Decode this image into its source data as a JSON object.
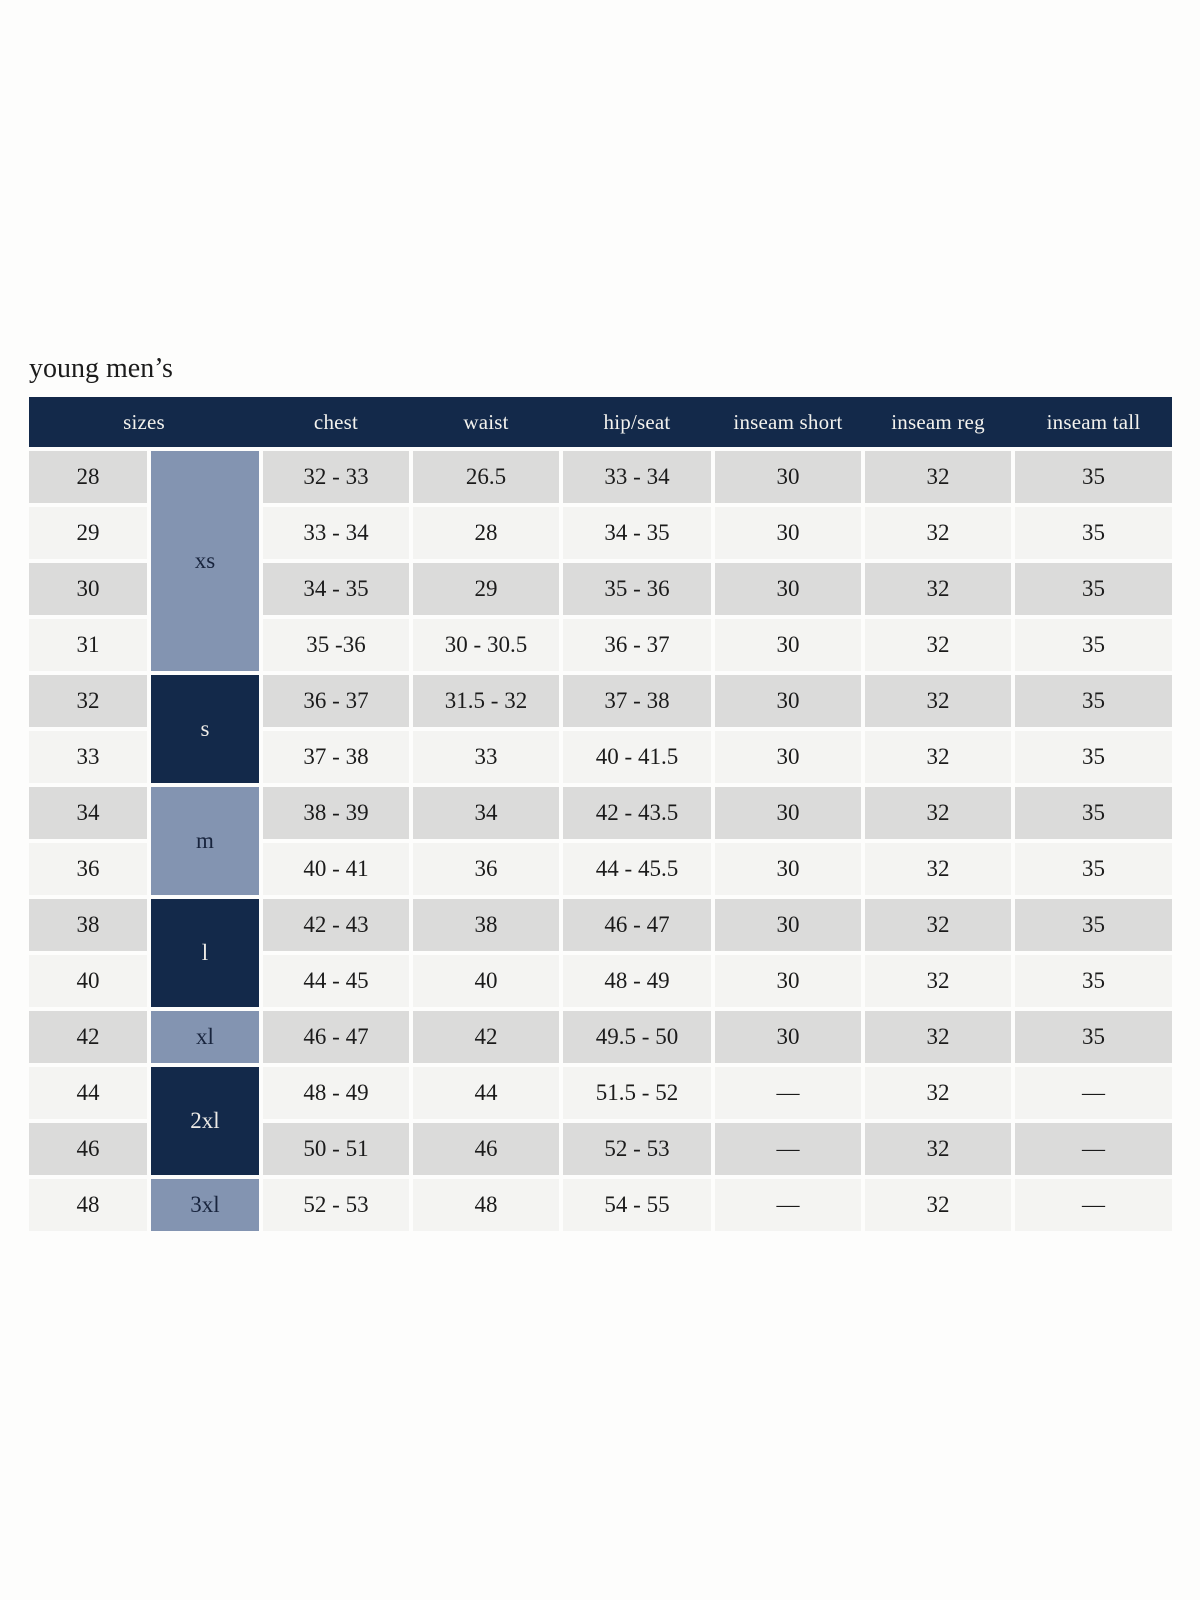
{
  "page": {
    "title": "young men’s"
  },
  "colors": {
    "header_bg": "#13294a",
    "header_fg": "#f3f2ee",
    "row_odd": "#dbdbda",
    "row_even": "#f4f4f2",
    "group_light": "#8394b1",
    "group_dark": "#13294a",
    "page_bg": "#fdfdfc",
    "text": "#1b1b1b"
  },
  "table": {
    "columns": [
      "sizes",
      "chest",
      "waist",
      "hip/seat",
      "inseam short",
      "inseam reg",
      "inseam tall"
    ],
    "size_groups": [
      {
        "label": "xs",
        "rows": 4,
        "variant": "light"
      },
      {
        "label": "s",
        "rows": 2,
        "variant": "dark"
      },
      {
        "label": "m",
        "rows": 2,
        "variant": "light"
      },
      {
        "label": "l",
        "rows": 2,
        "variant": "dark"
      },
      {
        "label": "xl",
        "rows": 1,
        "variant": "light"
      },
      {
        "label": "2xl",
        "rows": 2,
        "variant": "dark"
      },
      {
        "label": "3xl",
        "rows": 1,
        "variant": "light"
      }
    ],
    "rows": [
      {
        "size": "28",
        "chest": "32 - 33",
        "waist": "26.5",
        "hip_seat": "33 - 34",
        "inseam_short": "30",
        "inseam_reg": "32",
        "inseam_tall": "35"
      },
      {
        "size": "29",
        "chest": "33 - 34",
        "waist": "28",
        "hip_seat": "34 - 35",
        "inseam_short": "30",
        "inseam_reg": "32",
        "inseam_tall": "35"
      },
      {
        "size": "30",
        "chest": "34 - 35",
        "waist": "29",
        "hip_seat": "35 - 36",
        "inseam_short": "30",
        "inseam_reg": "32",
        "inseam_tall": "35"
      },
      {
        "size": "31",
        "chest": "35 -36",
        "waist": "30 - 30.5",
        "hip_seat": "36 - 37",
        "inseam_short": "30",
        "inseam_reg": "32",
        "inseam_tall": "35"
      },
      {
        "size": "32",
        "chest": "36 - 37",
        "waist": "31.5 - 32",
        "hip_seat": "37 - 38",
        "inseam_short": "30",
        "inseam_reg": "32",
        "inseam_tall": "35"
      },
      {
        "size": "33",
        "chest": "37 - 38",
        "waist": "33",
        "hip_seat": "40 - 41.5",
        "inseam_short": "30",
        "inseam_reg": "32",
        "inseam_tall": "35"
      },
      {
        "size": "34",
        "chest": "38 - 39",
        "waist": "34",
        "hip_seat": "42 - 43.5",
        "inseam_short": "30",
        "inseam_reg": "32",
        "inseam_tall": "35"
      },
      {
        "size": "36",
        "chest": "40 - 41",
        "waist": "36",
        "hip_seat": "44 - 45.5",
        "inseam_short": "30",
        "inseam_reg": "32",
        "inseam_tall": "35"
      },
      {
        "size": "38",
        "chest": "42 - 43",
        "waist": "38",
        "hip_seat": "46 - 47",
        "inseam_short": "30",
        "inseam_reg": "32",
        "inseam_tall": "35"
      },
      {
        "size": "40",
        "chest": "44 - 45",
        "waist": "40",
        "hip_seat": "48 - 49",
        "inseam_short": "30",
        "inseam_reg": "32",
        "inseam_tall": "35"
      },
      {
        "size": "42",
        "chest": "46 - 47",
        "waist": "42",
        "hip_seat": "49.5 - 50",
        "inseam_short": "30",
        "inseam_reg": "32",
        "inseam_tall": "35"
      },
      {
        "size": "44",
        "chest": "48 - 49",
        "waist": "44",
        "hip_seat": "51.5 - 52",
        "inseam_short": "—",
        "inseam_reg": "32",
        "inseam_tall": "—"
      },
      {
        "size": "46",
        "chest": "50 - 51",
        "waist": "46",
        "hip_seat": "52 - 53",
        "inseam_short": "—",
        "inseam_reg": "32",
        "inseam_tall": "—"
      },
      {
        "size": "48",
        "chest": "52 - 53",
        "waist": "48",
        "hip_seat": "54 - 55",
        "inseam_short": "—",
        "inseam_reg": "32",
        "inseam_tall": "—"
      }
    ]
  }
}
